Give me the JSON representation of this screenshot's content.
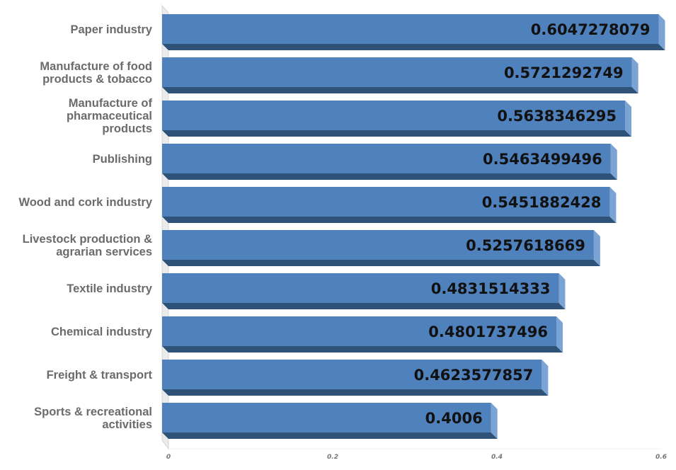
{
  "chart_data": {
    "type": "bar",
    "orientation": "horizontal",
    "categories": [
      "Paper industry",
      "Manufacture of food products & tobacco",
      "Manufacture of pharmaceutical products",
      "Publishing",
      "Wood and cork industry",
      "Livestock production & agrarian services",
      "Textile industry",
      "Chemical industry",
      "Freight & transport",
      "Sports & recreational activities"
    ],
    "category_lines": [
      [
        "Paper industry"
      ],
      [
        "Manufacture of food",
        "products & tobacco"
      ],
      [
        "Manufacture of",
        "pharmaceutical",
        "products"
      ],
      [
        "Publishing"
      ],
      [
        "Wood and cork industry"
      ],
      [
        "Livestock production &",
        "agrarian services"
      ],
      [
        "Textile industry"
      ],
      [
        "Chemical industry"
      ],
      [
        "Freight & transport"
      ],
      [
        "Sports & recreational",
        "activities"
      ]
    ],
    "values": [
      0.6047278079,
      0.5721292749,
      0.5638346295,
      0.5463499496,
      0.5451882428,
      0.5257618669,
      0.4831514333,
      0.4801737496,
      0.4623577857,
      0.4006
    ],
    "value_labels": [
      "0.6047278079",
      "0.5721292749",
      "0.5638346295",
      "0.5463499496",
      "0.5451882428",
      "0.5257618669",
      "0.4831514333",
      "0.4801737496",
      "0.4623577857",
      "0.4006"
    ],
    "xlim": [
      0,
      0.6
    ],
    "x_ticks": [
      0,
      0.2,
      0.4,
      0.6
    ],
    "x_tick_labels": [
      "0",
      "0.2",
      "0.4",
      "0.6"
    ],
    "title": "",
    "xlabel": "",
    "ylabel": "",
    "grid": false,
    "legend": "none",
    "colors": {
      "bar_front": "#4f81bd",
      "bar_side": "#7ba3d4",
      "bar_bottom": "#2f5279",
      "wall": "#ebebeb",
      "wall_edge": "#d6d6d6"
    }
  }
}
